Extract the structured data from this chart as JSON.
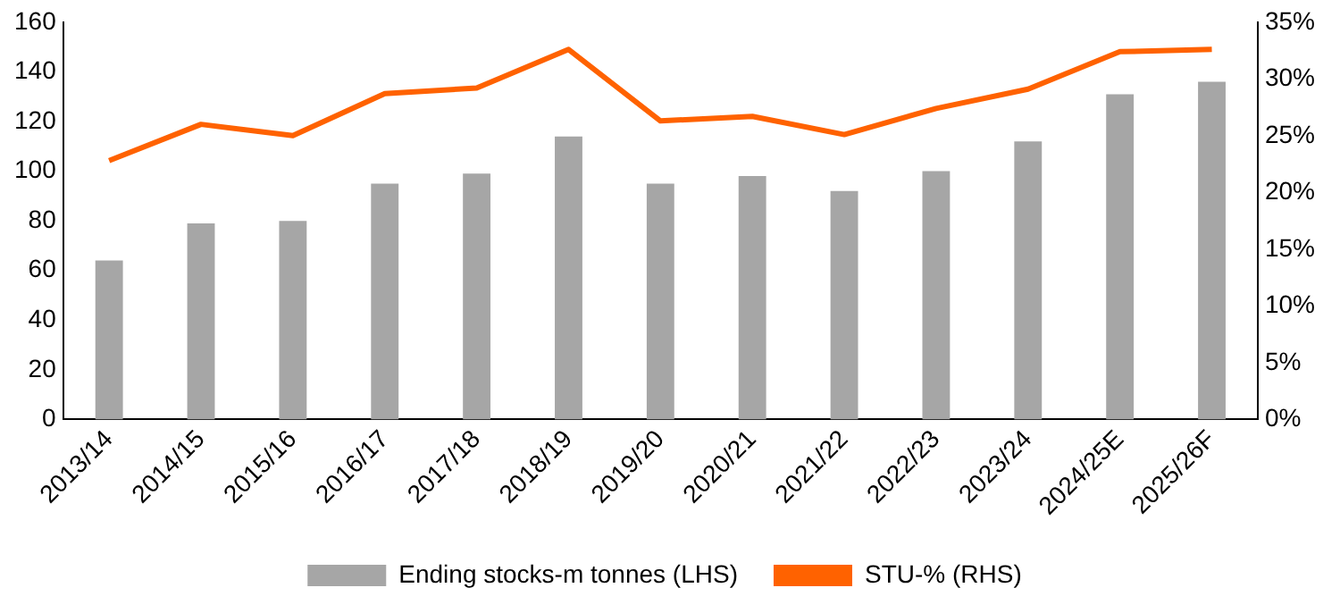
{
  "chart_data": {
    "type": "bar",
    "categories": [
      "2013/14",
      "2014/15",
      "2015/16",
      "2016/17",
      "2017/18",
      "2018/19",
      "2019/20",
      "2020/21",
      "2021/22",
      "2022/23",
      "2023/24",
      "2024/25E",
      "2025/26F"
    ],
    "series": [
      {
        "name": "Ending stocks-m tonnes (LHS)",
        "color": "#a6a6a6",
        "values": [
          64,
          79,
          80,
          95,
          99,
          114,
          95,
          98,
          92,
          100,
          112,
          131,
          136
        ]
      },
      {
        "name": "STU-% (RHS)",
        "type": "line",
        "axis": "y2",
        "color": "#ff6200",
        "values": [
          22.8,
          26.0,
          25.0,
          28.7,
          29.2,
          32.6,
          26.3,
          26.7,
          25.1,
          27.4,
          29.1,
          32.4,
          32.6
        ]
      }
    ],
    "ylim": [
      0,
      160
    ],
    "yticks": [
      0,
      20,
      40,
      60,
      80,
      100,
      120,
      140,
      160
    ],
    "y2lim": [
      0,
      35
    ],
    "y2ticks": [
      {
        "value": 0,
        "label": "0%"
      },
      {
        "value": 5,
        "label": "5%"
      },
      {
        "value": 10,
        "label": "10%"
      },
      {
        "value": 15,
        "label": "15%"
      },
      {
        "value": 20,
        "label": "20%"
      },
      {
        "value": 25,
        "label": "25%"
      },
      {
        "value": 30,
        "label": "30%"
      },
      {
        "value": 35,
        "label": "35%"
      }
    ],
    "legend": "bottom",
    "grid": false,
    "marker": "none"
  }
}
